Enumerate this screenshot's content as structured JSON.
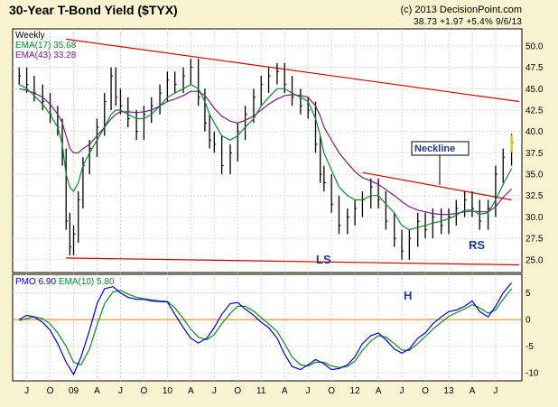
{
  "header": {
    "title": "30-Year T-Bond Yield ($TYX)",
    "copyright": "(c) 2013 DecisionPoint.com",
    "quote": "38.73 +1.97 +5.4% 9/6/13"
  },
  "legend": {
    "period": "Weekly",
    "ema17": "EMA(17) 35.68",
    "ema43": "EMA(43) 33.28",
    "pmo_label": "PMO",
    "pmo_value": "6.90",
    "pmo_ema": "EMA(10) 5.80"
  },
  "annotations": {
    "neckline": "Neckline",
    "ls": "LS",
    "h": "H",
    "rs": "RS"
  },
  "colors": {
    "background": "#f7f2cf",
    "plot_background": "#ffffff",
    "price": "#000000",
    "ema17": "#0a8a2a",
    "ema43": "#7a1a8a",
    "trendline": "#cc0000",
    "pmo": "#0000cc",
    "pmo_ema": "#0a8a2a",
    "annotation": "#1f3a8a",
    "zero_line": "#e07b00"
  },
  "chart_data": [
    {
      "type": "line",
      "title": "30-Year T-Bond Yield ($TYX)",
      "y_scale": "yield x10 (%)",
      "ylim": [
        23.5,
        52
      ],
      "yticks": [
        25.0,
        27.5,
        30.0,
        32.5,
        35.0,
        37.5,
        40.0,
        42.5,
        45.0,
        47.5,
        50.0
      ],
      "ytick_labels": [
        "25.0",
        "27.5",
        "30.0",
        "32.5",
        "35.0",
        "37.5",
        "40.0",
        "42.5",
        "45.0",
        "47.5",
        "50.0"
      ],
      "xtick_labels": [
        "J",
        "O",
        "09",
        "A",
        "J",
        "O",
        "10",
        "A",
        "J",
        "O",
        "11",
        "A",
        "J",
        "O",
        "12",
        "A",
        "J",
        "O",
        "13",
        "A",
        "J"
      ],
      "x_range": [
        "2008-05",
        "2013-09"
      ],
      "series": [
        {
          "name": "$TYX",
          "x": [
            2008.42,
            2008.5,
            2008.58,
            2008.67,
            2008.75,
            2008.83,
            2008.88,
            2008.92,
            2008.96,
            2009.0,
            2009.05,
            2009.1,
            2009.17,
            2009.25,
            2009.33,
            2009.4,
            2009.45,
            2009.5,
            2009.58,
            2009.67,
            2009.75,
            2009.83,
            2009.92,
            2010.0,
            2010.08,
            2010.17,
            2010.25,
            2010.33,
            2010.4,
            2010.45,
            2010.5,
            2010.58,
            2010.67,
            2010.75,
            2010.83,
            2010.92,
            2011.0,
            2011.08,
            2011.17,
            2011.25,
            2011.33,
            2011.42,
            2011.5,
            2011.58,
            2011.63,
            2011.67,
            2011.75,
            2011.83,
            2011.92,
            2012.0,
            2012.08,
            2012.17,
            2012.25,
            2012.33,
            2012.42,
            2012.5,
            2012.58,
            2012.67,
            2012.75,
            2012.83,
            2012.92,
            2013.0,
            2013.08,
            2013.17,
            2013.25,
            2013.33,
            2013.42,
            2013.5,
            2013.58,
            2013.67
          ],
          "values": [
            46.5,
            45.5,
            44.5,
            43.5,
            42.0,
            40.5,
            37.0,
            29.5,
            26.5,
            28.0,
            32.0,
            36.0,
            38.0,
            40.5,
            43.5,
            46.5,
            44.0,
            43.0,
            41.5,
            40.0,
            42.0,
            43.0,
            44.5,
            46.0,
            45.5,
            46.5,
            47.5,
            44.0,
            41.0,
            39.0,
            38.5,
            36.0,
            37.5,
            40.0,
            42.0,
            44.0,
            45.5,
            46.5,
            47.0,
            45.5,
            44.0,
            43.0,
            42.5,
            38.5,
            35.0,
            34.0,
            31.5,
            29.0,
            30.0,
            31.0,
            32.0,
            33.5,
            32.0,
            29.5,
            27.5,
            26.0,
            27.5,
            29.5,
            28.5,
            30.0,
            29.0,
            30.0,
            31.0,
            32.0,
            31.0,
            29.5,
            31.0,
            35.0,
            37.0,
            38.73
          ]
        },
        {
          "name": "EMA(17)",
          "values": [
            45.5,
            45.0,
            44.2,
            43.2,
            42.0,
            40.5,
            38.5,
            35.0,
            33.5,
            33.0,
            34.0,
            36.0,
            37.5,
            39.0,
            40.5,
            42.0,
            42.5,
            42.5,
            42.0,
            41.5,
            41.5,
            42.0,
            43.0,
            44.0,
            44.5,
            45.0,
            45.5,
            45.0,
            43.5,
            42.0,
            41.0,
            39.5,
            39.0,
            39.5,
            40.5,
            41.5,
            43.0,
            44.0,
            45.0,
            45.0,
            44.5,
            44.0,
            43.5,
            41.5,
            39.5,
            37.5,
            35.5,
            33.5,
            32.5,
            32.0,
            32.0,
            32.5,
            32.5,
            31.5,
            30.5,
            29.0,
            28.5,
            28.8,
            29.0,
            29.3,
            29.5,
            29.8,
            30.2,
            30.8,
            30.8,
            30.3,
            30.5,
            32.0,
            33.8,
            35.68
          ]
        },
        {
          "name": "EMA(43)",
          "values": [
            45.0,
            44.8,
            44.5,
            44.0,
            43.2,
            42.0,
            41.0,
            39.5,
            38.0,
            37.5,
            37.5,
            38.0,
            38.5,
            39.5,
            40.5,
            41.5,
            42.0,
            42.3,
            42.3,
            42.2,
            42.3,
            42.5,
            43.0,
            43.5,
            43.8,
            44.2,
            44.7,
            44.7,
            44.2,
            43.5,
            42.7,
            41.8,
            41.2,
            41.0,
            41.3,
            41.8,
            42.5,
            43.2,
            43.8,
            44.2,
            44.3,
            44.2,
            44.0,
            43.0,
            41.8,
            40.5,
            39.0,
            37.5,
            36.3,
            35.3,
            34.6,
            34.2,
            33.8,
            33.2,
            32.5,
            31.8,
            31.2,
            30.8,
            30.6,
            30.4,
            30.3,
            30.3,
            30.4,
            30.6,
            30.7,
            30.6,
            30.6,
            31.2,
            32.3,
            33.28
          ]
        }
      ],
      "trendlines": [
        {
          "name": "upper",
          "x": [
            2008.92,
            2013.75
          ],
          "values": [
            50.8,
            43.5
          ]
        },
        {
          "name": "lower",
          "x": [
            2008.92,
            2013.75
          ],
          "values": [
            25.2,
            24.4
          ]
        },
        {
          "name": "neckline",
          "x": [
            2012.08,
            2013.67
          ],
          "values": [
            35.2,
            32.0
          ]
        }
      ]
    },
    {
      "type": "line",
      "title": "PMO 6.90 EMA(10) 5.80",
      "ylim": [
        -11.5,
        8.5
      ],
      "yticks": [
        -10,
        -5,
        0,
        5
      ],
      "ytick_labels": [
        "-10",
        "-5",
        "0",
        "5"
      ],
      "series": [
        {
          "name": "PMO",
          "x": [
            2008.42,
            2008.5,
            2008.58,
            2008.67,
            2008.75,
            2008.83,
            2008.92,
            2009.0,
            2009.08,
            2009.17,
            2009.25,
            2009.33,
            2009.42,
            2009.5,
            2009.58,
            2009.67,
            2009.75,
            2009.83,
            2009.92,
            2010.0,
            2010.08,
            2010.17,
            2010.25,
            2010.33,
            2010.42,
            2010.5,
            2010.58,
            2010.67,
            2010.75,
            2010.83,
            2010.92,
            2011.0,
            2011.08,
            2011.17,
            2011.25,
            2011.33,
            2011.42,
            2011.5,
            2011.58,
            2011.67,
            2011.75,
            2011.83,
            2011.92,
            2012.0,
            2012.08,
            2012.17,
            2012.25,
            2012.33,
            2012.42,
            2012.5,
            2012.58,
            2012.67,
            2012.75,
            2012.83,
            2012.92,
            2013.0,
            2013.08,
            2013.17,
            2013.25,
            2013.33,
            2013.42,
            2013.5,
            2013.58,
            2013.67
          ],
          "values": [
            0.0,
            0.8,
            0.5,
            -0.5,
            -2.0,
            -4.5,
            -8.0,
            -10.3,
            -7.0,
            -2.0,
            3.0,
            5.8,
            6.2,
            5.0,
            4.2,
            3.8,
            3.8,
            3.5,
            3.4,
            3.3,
            1.0,
            -1.5,
            -3.5,
            -4.4,
            -3.5,
            -1.5,
            1.0,
            3.0,
            3.2,
            2.0,
            0.8,
            -0.5,
            -1.5,
            -3.5,
            -6.5,
            -8.8,
            -9.4,
            -8.5,
            -7.5,
            -8.3,
            -9.4,
            -9.2,
            -8.5,
            -7.0,
            -4.5,
            -3.0,
            -2.5,
            -3.8,
            -5.5,
            -6.3,
            -5.5,
            -3.5,
            -2.5,
            -0.8,
            0.5,
            1.5,
            1.8,
            2.5,
            3.5,
            1.5,
            0.5,
            2.5,
            5.0,
            6.9
          ]
        },
        {
          "name": "EMA(10)",
          "values": [
            -0.2,
            0.2,
            0.5,
            0.2,
            -0.8,
            -2.5,
            -5.0,
            -8.0,
            -8.5,
            -5.5,
            -1.0,
            3.0,
            5.2,
            5.5,
            4.8,
            4.2,
            3.9,
            3.7,
            3.5,
            3.4,
            2.2,
            0.2,
            -1.8,
            -3.3,
            -3.8,
            -2.8,
            -0.8,
            1.2,
            2.5,
            2.5,
            1.6,
            0.4,
            -0.8,
            -2.2,
            -4.5,
            -7.0,
            -8.5,
            -8.7,
            -8.0,
            -8.0,
            -8.7,
            -9.0,
            -8.8,
            -7.8,
            -5.8,
            -4.0,
            -3.0,
            -3.3,
            -4.5,
            -5.7,
            -5.8,
            -4.5,
            -3.2,
            -1.8,
            -0.5,
            0.6,
            1.3,
            2.0,
            2.8,
            2.2,
            1.2,
            1.8,
            3.8,
            5.8
          ]
        }
      ]
    }
  ]
}
